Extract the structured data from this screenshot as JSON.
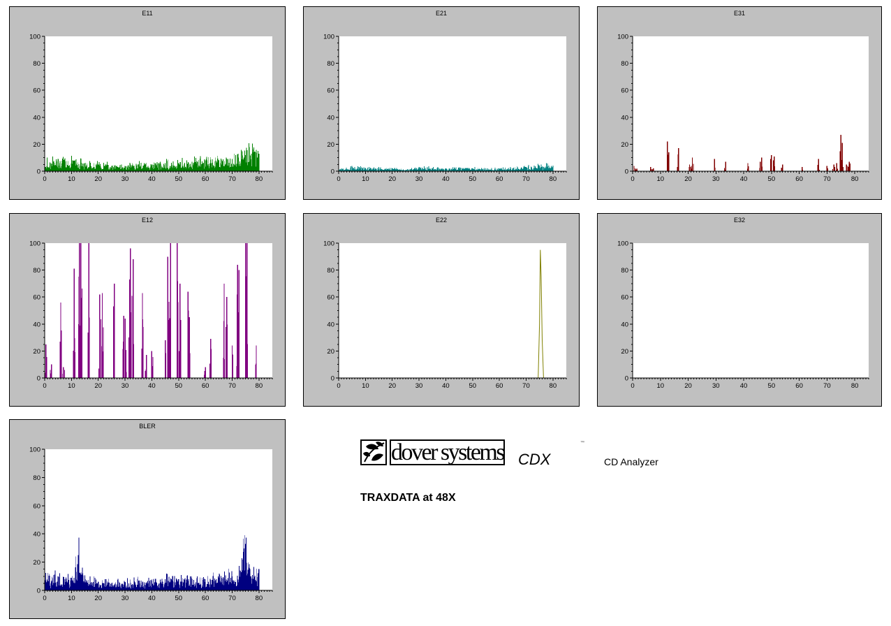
{
  "panels": [
    {
      "id": "E11",
      "title": "E11",
      "color": "#008000"
    },
    {
      "id": "E21",
      "title": "E21",
      "color": "#008080"
    },
    {
      "id": "E31",
      "title": "E31",
      "color": "#800000"
    },
    {
      "id": "E12",
      "title": "E12",
      "color": "#800080"
    },
    {
      "id": "E22",
      "title": "E22",
      "color": "#808000"
    },
    {
      "id": "E32",
      "title": "E32",
      "color": "#000080"
    },
    {
      "id": "BLER",
      "title": "BLER",
      "color": "#000080"
    }
  ],
  "brand": {
    "company": "dover systems",
    "product": "CDX",
    "trademark": "™",
    "tagline": "CD Analyzer",
    "subtitle": "TRAXDATA at 48X"
  },
  "chart_data": [
    {
      "title": "E11",
      "type": "area",
      "xlim": [
        0,
        85
      ],
      "ylim": [
        0,
        100
      ],
      "xticks": [
        0,
        10,
        20,
        30,
        40,
        50,
        60,
        70,
        80
      ],
      "yticks": [
        0,
        20,
        40,
        60,
        80,
        100
      ],
      "x": [
        0,
        5,
        10,
        15,
        20,
        25,
        30,
        35,
        40,
        45,
        50,
        55,
        60,
        65,
        70,
        75,
        78,
        80
      ],
      "y": [
        6,
        9,
        8,
        6,
        5,
        4,
        4,
        5,
        5,
        6,
        6,
        7,
        8,
        8,
        9,
        12,
        16,
        13
      ]
    },
    {
      "title": "E21",
      "type": "area",
      "xlim": [
        0,
        85
      ],
      "ylim": [
        0,
        100
      ],
      "xticks": [
        0,
        10,
        20,
        30,
        40,
        50,
        60,
        70,
        80
      ],
      "yticks": [
        0,
        20,
        40,
        60,
        80,
        100
      ],
      "x": [
        0,
        5,
        10,
        15,
        20,
        25,
        30,
        35,
        40,
        45,
        50,
        55,
        60,
        65,
        70,
        75,
        78,
        80
      ],
      "y": [
        1,
        3,
        2,
        2,
        2,
        1,
        3,
        2,
        2,
        2,
        2,
        2,
        2,
        2,
        3,
        4,
        4,
        3
      ]
    },
    {
      "title": "E31",
      "type": "bar",
      "xlim": [
        0,
        85
      ],
      "ylim": [
        0,
        100
      ],
      "xticks": [
        0,
        10,
        20,
        30,
        40,
        50,
        60,
        70,
        80
      ],
      "yticks": [
        0,
        20,
        40,
        60,
        80,
        100
      ],
      "x": [
        0.5,
        1.5,
        6.5,
        7.5,
        12.5,
        13,
        16.5,
        20.5,
        21.5,
        29.5,
        33.5,
        41.5,
        46,
        46.5,
        50,
        51,
        54,
        61,
        67,
        70,
        72.5,
        73.5,
        75,
        75.5,
        77,
        78
      ],
      "y": [
        4,
        2,
        3,
        2,
        22,
        14,
        17,
        5,
        10,
        9,
        7,
        6,
        7,
        10,
        12,
        11,
        5,
        3,
        9,
        4,
        5,
        6,
        27,
        21,
        5,
        7
      ]
    },
    {
      "title": "E12",
      "type": "bar",
      "xlim": [
        0,
        85
      ],
      "ylim": [
        0,
        100
      ],
      "xticks": [
        0,
        10,
        20,
        30,
        40,
        50,
        60,
        70,
        80
      ],
      "yticks": [
        0,
        20,
        40,
        60,
        80,
        100
      ],
      "x": [
        0.5,
        2.5,
        6,
        7,
        11,
        13,
        13.5,
        16.5,
        20.5,
        21.5,
        26,
        29.5,
        30,
        31.5,
        32,
        33,
        36.5,
        38,
        40,
        45,
        46,
        47,
        49.5,
        50.5,
        53.5,
        54,
        60,
        62,
        67,
        68,
        70,
        72,
        72.5,
        75,
        75.5,
        79
      ],
      "y": [
        25,
        10,
        56,
        8,
        81,
        100,
        100,
        100,
        62,
        63,
        70,
        46,
        44,
        30,
        96,
        88,
        63,
        17,
        20,
        28,
        90,
        100,
        100,
        70,
        64,
        45,
        8,
        29,
        70,
        60,
        24,
        84,
        80,
        100,
        100,
        24
      ]
    },
    {
      "title": "E22",
      "type": "line",
      "xlim": [
        0,
        85
      ],
      "ylim": [
        0,
        100
      ],
      "xticks": [
        0,
        10,
        20,
        30,
        40,
        50,
        60,
        70,
        80
      ],
      "yticks": [
        0,
        20,
        40,
        60,
        80,
        100
      ],
      "x": [
        0,
        74.5,
        75,
        75.3,
        75.6,
        76,
        76.5,
        85
      ],
      "y": [
        0,
        0,
        40,
        95,
        76,
        28,
        0,
        0
      ]
    },
    {
      "title": "E32",
      "type": "line",
      "xlim": [
        0,
        85
      ],
      "ylim": [
        0,
        100
      ],
      "xticks": [
        0,
        10,
        20,
        30,
        40,
        50,
        60,
        70,
        80
      ],
      "yticks": [
        0,
        20,
        40,
        60,
        80,
        100
      ],
      "x": [],
      "y": []
    },
    {
      "title": "BLER",
      "type": "area",
      "xlim": [
        0,
        85
      ],
      "ylim": [
        0,
        100
      ],
      "xticks": [
        0,
        10,
        20,
        30,
        40,
        50,
        60,
        70,
        80
      ],
      "yticks": [
        0,
        20,
        40,
        60,
        80,
        100
      ],
      "x": [
        0,
        5,
        10,
        12.5,
        15,
        20,
        25,
        30,
        35,
        40,
        45,
        50,
        55,
        60,
        65,
        70,
        73,
        75,
        77,
        80
      ],
      "y": [
        8,
        10,
        9,
        25,
        8,
        6,
        5,
        6,
        7,
        7,
        8,
        8,
        8,
        8,
        9,
        10,
        14,
        33,
        10,
        15
      ]
    }
  ]
}
